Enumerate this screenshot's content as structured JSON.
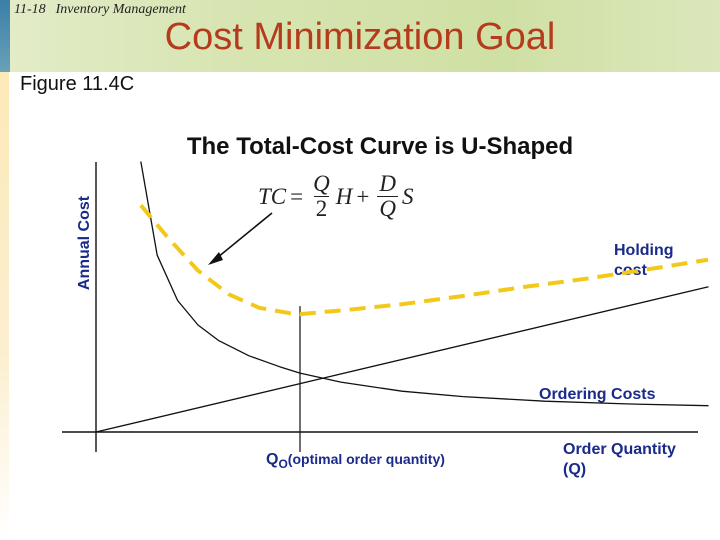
{
  "header": {
    "slide_number": "11-18",
    "course": "Inventory Management",
    "title": "Cost Minimization Goal"
  },
  "figure_caption": "Figure 11.4C",
  "formula": {
    "lhs": "TC",
    "equals": "=",
    "term1_numerator": "Q",
    "term1_denominator": "2",
    "term1_multiplier": "H",
    "plus": "+",
    "term2_numerator": "D",
    "term2_denominator": "Q",
    "term2_multiplier": "S"
  },
  "colors": {
    "title": "#b53b1c",
    "axis_text": "#1a2a8a",
    "total_cost_curve": "#f2c81a",
    "lines": "#111111"
  },
  "chart_data": {
    "type": "line",
    "title": "The Total-Cost Curve is U-Shaped",
    "ylabel": "Annual Cost",
    "xlabel": "Order Quantity (Q)",
    "xlabel_lines": [
      "Order Quantity",
      "(Q)"
    ],
    "x_marker": {
      "label_main": "Q",
      "label_sub": "O",
      "label_rest": "(optimal order quantity)",
      "x": 1
    },
    "xlim": [
      0,
      3
    ],
    "ylim": [
      0,
      3
    ],
    "series": [
      {
        "name": "Holding cost",
        "label_lines": [
          "Holding",
          "cost"
        ],
        "style": "solid",
        "x": [
          0,
          3
        ],
        "y": [
          0,
          1.6
        ]
      },
      {
        "name": "Ordering Costs",
        "style": "solid",
        "x": [
          0.22,
          0.3,
          0.4,
          0.5,
          0.6,
          0.75,
          0.9,
          1.0,
          1.2,
          1.5,
          1.8,
          2.2,
          2.6,
          3.0
        ],
        "y": [
          3.3,
          1.95,
          1.45,
          1.18,
          1.01,
          0.84,
          0.72,
          0.65,
          0.55,
          0.45,
          0.39,
          0.34,
          0.31,
          0.29
        ]
      },
      {
        "name": "Total cost",
        "style": "dashed",
        "x": [
          0.22,
          0.35,
          0.5,
          0.65,
          0.8,
          0.95,
          1.0,
          1.2,
          1.5,
          1.8,
          2.1,
          2.4,
          2.75,
          3.0
        ],
        "y": [
          2.5,
          2.15,
          1.78,
          1.52,
          1.37,
          1.31,
          1.3,
          1.34,
          1.41,
          1.5,
          1.6,
          1.69,
          1.81,
          1.9
        ]
      }
    ]
  }
}
